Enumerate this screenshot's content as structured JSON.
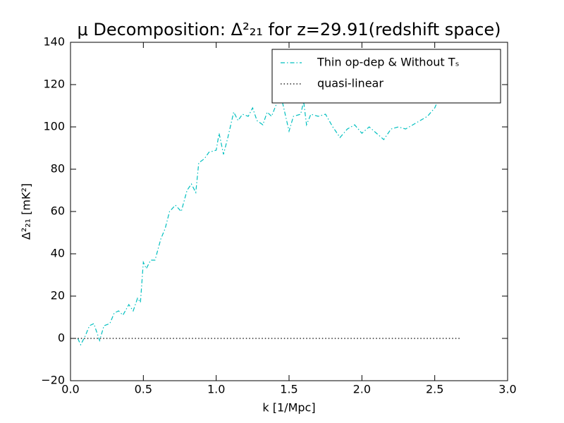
{
  "chart_data": {
    "type": "line",
    "title": "μ Decomposition: Δ²₂₁ for z=29.91(redshift space)",
    "xlabel": "k [1/Mpc]",
    "ylabel": "Δ²₂₁ [mK²]",
    "xlim": [
      0,
      3
    ],
    "ylim": [
      -20,
      140
    ],
    "xticks": [
      {
        "value": 0,
        "label": "0.0"
      },
      0.5,
      {
        "value": 1,
        "label": "1.0"
      },
      1.5,
      {
        "value": 2,
        "label": "2.0"
      },
      2.5,
      {
        "value": 3,
        "label": "3.0"
      }
    ],
    "yticks": [
      {
        "value": -20,
        "label": "−20"
      },
      0,
      20,
      40,
      60,
      80,
      100,
      120,
      140
    ],
    "grid": false,
    "legend": "upper right",
    "series": [
      {
        "name": "Thin op-dep & Without Tₛ",
        "color": "#00bfbf",
        "style": "dashdot",
        "x": [
          0.05,
          0.07,
          0.1,
          0.13,
          0.16,
          0.2,
          0.23,
          0.27,
          0.3,
          0.33,
          0.36,
          0.4,
          0.43,
          0.46,
          0.48,
          0.5,
          0.52,
          0.55,
          0.58,
          0.62,
          0.65,
          0.68,
          0.72,
          0.76,
          0.8,
          0.83,
          0.86,
          0.88,
          0.92,
          0.95,
          1.0,
          1.02,
          1.05,
          1.08,
          1.12,
          1.15,
          1.18,
          1.22,
          1.25,
          1.28,
          1.32,
          1.35,
          1.38,
          1.42,
          1.45,
          1.5,
          1.53,
          1.58,
          1.6,
          1.62,
          1.65,
          1.7,
          1.75,
          1.8,
          1.85,
          1.9,
          1.95,
          2.0,
          2.05,
          2.1,
          2.15,
          2.2,
          2.25,
          2.3,
          2.35,
          2.4,
          2.45,
          2.5,
          2.55
        ],
        "values": [
          0,
          -3,
          1,
          6,
          7,
          -1,
          6,
          7,
          12,
          13,
          11,
          16,
          13,
          19,
          17,
          36,
          33,
          37,
          37,
          47,
          52,
          60,
          63,
          60,
          70,
          73,
          69,
          83,
          85,
          88,
          89,
          97,
          87,
          95,
          107,
          103,
          106,
          105,
          109,
          103,
          101,
          107,
          105,
          112,
          113,
          98,
          105,
          106,
          112,
          101,
          106,
          105,
          106,
          100,
          95,
          99,
          101,
          97,
          100,
          97,
          94,
          99,
          100,
          99,
          101,
          103,
          105,
          109,
          117
        ]
      },
      {
        "name": "quasi-linear",
        "color": "#000000",
        "style": "dotted",
        "x": [
          0.05,
          2.67
        ],
        "values": [
          0,
          0
        ]
      }
    ]
  }
}
